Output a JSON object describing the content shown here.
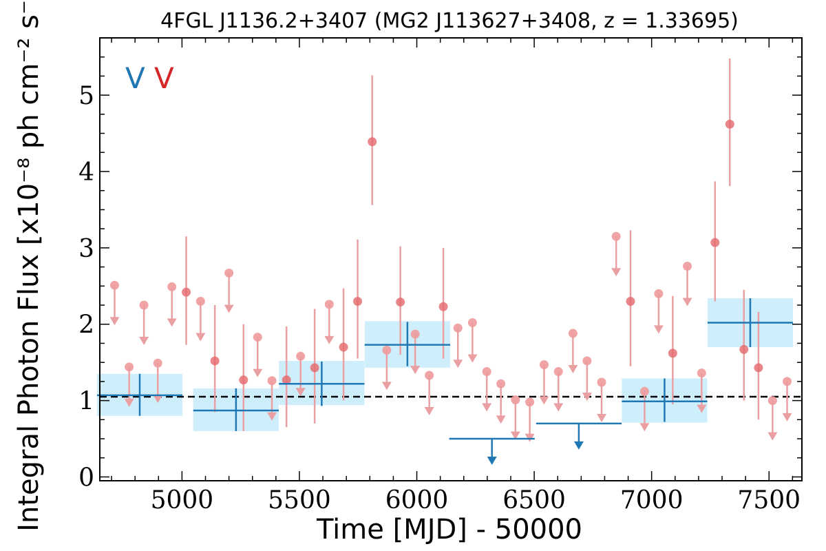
{
  "chart_data": {
    "type": "scatter",
    "title": "4FGL J1136.2+3407 (MG2 J113627+3408, z = 1.33695)",
    "xlabel": "Time [MJD] - 50000",
    "ylabel": "Integral Photon Flux [x10⁻⁸ ph cm⁻² s⁻¹]",
    "xlim": [
      4650,
      7640
    ],
    "ylim": [
      -0.05,
      5.75
    ],
    "xticks": [
      5000,
      5500,
      6000,
      6500,
      7000,
      7500
    ],
    "yticks": [
      0,
      1,
      2,
      3,
      4,
      5
    ],
    "grid": false,
    "mean_flux": 1.05,
    "legend": {
      "placement": "top-left",
      "entries": [
        {
          "label": "V",
          "color": "#1f77b4"
        },
        {
          "label": "V",
          "color": "#d62728"
        }
      ]
    },
    "series": [
      {
        "name": "V",
        "color": "#1f77b4",
        "bin_half_width": 182,
        "points": [
          {
            "x": 4820,
            "y": 1.07,
            "ylo": 0.8,
            "yhi": 1.35,
            "band_lo": 0.8,
            "band_hi": 1.35
          },
          {
            "x": 5230,
            "y": 0.87,
            "ylo": 0.6,
            "yhi": 1.16,
            "band_lo": 0.6,
            "band_hi": 1.16
          },
          {
            "x": 5595,
            "y": 1.22,
            "ylo": 0.93,
            "yhi": 1.51,
            "band_lo": 0.94,
            "band_hi": 1.52
          },
          {
            "x": 5960,
            "y": 1.73,
            "ylo": 1.45,
            "yhi": 2.03,
            "band_lo": 1.43,
            "band_hi": 2.04
          },
          {
            "x": 6320,
            "y": 0.5,
            "upper_limit": true
          },
          {
            "x": 6690,
            "y": 0.7,
            "upper_limit": true
          },
          {
            "x": 7055,
            "y": 0.99,
            "ylo": 0.72,
            "yhi": 1.29,
            "band_lo": 0.71,
            "band_hi": 1.29
          },
          {
            "x": 7420,
            "y": 2.02,
            "ylo": 1.7,
            "yhi": 2.34,
            "band_lo": 1.7,
            "band_hi": 2.34
          }
        ]
      },
      {
        "name": "V",
        "color": "#d62728",
        "detections": [
          {
            "x": 5018,
            "y": 2.42,
            "ylo": 1.73,
            "yhi": 3.15
          },
          {
            "x": 5140,
            "y": 1.52,
            "ylo": 0.85,
            "yhi": 2.25
          },
          {
            "x": 5262,
            "y": 1.27,
            "ylo": 0.6,
            "yhi": 2.0
          },
          {
            "x": 5445,
            "y": 1.27,
            "ylo": 0.65,
            "yhi": 1.97
          },
          {
            "x": 5565,
            "y": 1.43,
            "ylo": 0.7,
            "yhi": 2.2
          },
          {
            "x": 5688,
            "y": 1.7,
            "ylo": 1.0,
            "yhi": 2.47
          },
          {
            "x": 5748,
            "y": 2.3,
            "ylo": 1.55,
            "yhi": 3.11
          },
          {
            "x": 5810,
            "y": 4.39,
            "ylo": 3.56,
            "yhi": 5.26
          },
          {
            "x": 5930,
            "y": 2.29,
            "ylo": 1.6,
            "yhi": 3.02
          },
          {
            "x": 6113,
            "y": 2.23,
            "ylo": 1.55,
            "yhi": 3.0
          },
          {
            "x": 6910,
            "y": 2.3,
            "ylo": 1.45,
            "yhi": 3.23
          },
          {
            "x": 7090,
            "y": 1.62,
            "ylo": 0.95,
            "yhi": 2.37
          },
          {
            "x": 7270,
            "y": 3.07,
            "ylo": 2.3,
            "yhi": 3.87
          },
          {
            "x": 7333,
            "y": 4.62,
            "ylo": 3.81,
            "yhi": 5.48
          },
          {
            "x": 7393,
            "y": 1.67,
            "ylo": 1.0,
            "yhi": 2.45
          },
          {
            "x": 7455,
            "y": 1.43,
            "ylo": 0.75,
            "yhi": 2.16
          }
        ],
        "upper_limits": [
          {
            "x": 4713,
            "y": 2.51
          },
          {
            "x": 4775,
            "y": 1.44
          },
          {
            "x": 4838,
            "y": 2.25
          },
          {
            "x": 4897,
            "y": 1.49
          },
          {
            "x": 4957,
            "y": 2.49
          },
          {
            "x": 5079,
            "y": 2.3
          },
          {
            "x": 5200,
            "y": 2.67
          },
          {
            "x": 5322,
            "y": 1.83
          },
          {
            "x": 5383,
            "y": 1.26
          },
          {
            "x": 5505,
            "y": 1.58
          },
          {
            "x": 5627,
            "y": 2.26
          },
          {
            "x": 5872,
            "y": 1.66
          },
          {
            "x": 5993,
            "y": 1.87
          },
          {
            "x": 6053,
            "y": 1.33
          },
          {
            "x": 6175,
            "y": 1.95
          },
          {
            "x": 6237,
            "y": 2.02
          },
          {
            "x": 6298,
            "y": 1.38
          },
          {
            "x": 6358,
            "y": 1.22
          },
          {
            "x": 6420,
            "y": 1.01
          },
          {
            "x": 6481,
            "y": 0.98
          },
          {
            "x": 6542,
            "y": 1.47
          },
          {
            "x": 6603,
            "y": 1.38
          },
          {
            "x": 6665,
            "y": 1.88
          },
          {
            "x": 6725,
            "y": 1.52
          },
          {
            "x": 6787,
            "y": 1.24
          },
          {
            "x": 6849,
            "y": 3.15
          },
          {
            "x": 6970,
            "y": 1.12
          },
          {
            "x": 7030,
            "y": 2.4
          },
          {
            "x": 7152,
            "y": 2.76
          },
          {
            "x": 7213,
            "y": 1.36
          },
          {
            "x": 7515,
            "y": 1.0
          },
          {
            "x": 7577,
            "y": 1.25
          }
        ]
      }
    ]
  }
}
